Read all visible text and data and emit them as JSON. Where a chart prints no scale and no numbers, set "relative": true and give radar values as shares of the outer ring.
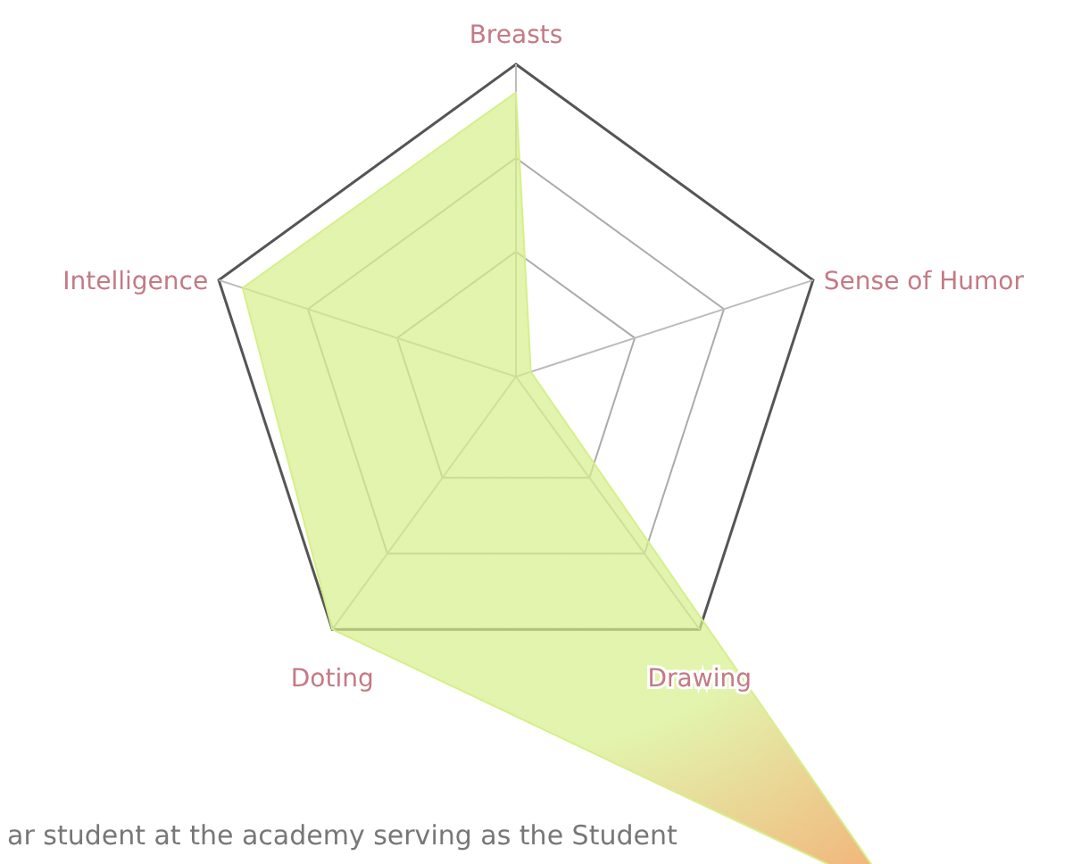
{
  "chart_data": {
    "type": "radar",
    "relative": true,
    "grid": true,
    "categories": [
      "Breasts",
      "Sense of Humor",
      "Drawing",
      "Doting",
      "Intelligence"
    ],
    "series": [
      {
        "color": "#d6ef8a",
        "values": [
          0.91,
          0.05,
          2.05,
          1.0,
          0.92
        ]
      }
    ],
    "annotations": [
      "ar student at the academy serving as the Student"
    ]
  }
}
